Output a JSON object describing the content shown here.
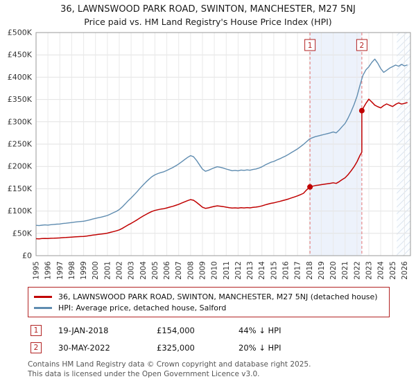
{
  "title": {
    "line1": "36, LAWNSWOOD PARK ROAD, SWINTON, MANCHESTER, M27 5NJ",
    "line2": "Price paid vs. HM Land Registry's House Price Index (HPI)"
  },
  "chart_data": {
    "type": "line",
    "title": "Price paid vs. HM Land Registry's House Price Index (HPI)",
    "xlabel": "",
    "ylabel": "",
    "x_range": [
      1995,
      2026.5
    ],
    "y_range": [
      0,
      500000
    ],
    "grid": true,
    "legend_position": "bottom",
    "y_ticks": [
      0,
      50000,
      100000,
      150000,
      200000,
      250000,
      300000,
      350000,
      400000,
      450000,
      500000
    ],
    "y_tick_labels": [
      "£0",
      "£50K",
      "£100K",
      "£150K",
      "£200K",
      "£250K",
      "£300K",
      "£350K",
      "£400K",
      "£450K",
      "£500K"
    ],
    "x_ticks": [
      1995,
      1996,
      1997,
      1998,
      1999,
      2000,
      2001,
      2002,
      2003,
      2004,
      2005,
      2006,
      2007,
      2008,
      2009,
      2010,
      2011,
      2012,
      2013,
      2014,
      2015,
      2016,
      2017,
      2018,
      2019,
      2020,
      2021,
      2022,
      2023,
      2024,
      2025,
      2026
    ],
    "shaded_band": {
      "from": 2018.05,
      "to": 2022.41,
      "color": "#edf2fb"
    },
    "hatched_region": {
      "from": 2025.35,
      "to": 2026.5
    },
    "sale_markers": [
      {
        "n": "1",
        "x": 2018.05,
        "y": 154000
      },
      {
        "n": "2",
        "x": 2022.41,
        "y": 325000
      }
    ],
    "series": [
      {
        "id": "property",
        "name": "36, LAWNSWOOD PARK ROAD, SWINTON, MANCHESTER, M27 5NJ (detached house)",
        "color": "#c00000",
        "width": 1.5,
        "points": [
          [
            1995.0,
            38100
          ],
          [
            1995.25,
            37700
          ],
          [
            1995.5,
            38300
          ],
          [
            1995.75,
            38600
          ],
          [
            1996.0,
            38400
          ],
          [
            1996.25,
            38900
          ],
          [
            1996.5,
            39200
          ],
          [
            1996.75,
            39500
          ],
          [
            1997.0,
            39800
          ],
          [
            1997.25,
            40300
          ],
          [
            1997.5,
            40700
          ],
          [
            1997.75,
            41200
          ],
          [
            1998.0,
            41600
          ],
          [
            1998.25,
            42100
          ],
          [
            1998.5,
            42600
          ],
          [
            1998.75,
            42900
          ],
          [
            1999.0,
            43200
          ],
          [
            1999.25,
            44000
          ],
          [
            1999.5,
            44900
          ],
          [
            1999.75,
            45900
          ],
          [
            2000.0,
            46800
          ],
          [
            2000.25,
            47700
          ],
          [
            2000.5,
            48500
          ],
          [
            2000.75,
            49400
          ],
          [
            2001.0,
            50500
          ],
          [
            2001.25,
            52100
          ],
          [
            2001.5,
            53900
          ],
          [
            2001.75,
            55600
          ],
          [
            2002.0,
            57800
          ],
          [
            2002.25,
            61100
          ],
          [
            2002.5,
            65000
          ],
          [
            2002.75,
            69000
          ],
          [
            2003.0,
            72400
          ],
          [
            2003.25,
            76300
          ],
          [
            2003.5,
            80300
          ],
          [
            2003.75,
            84600
          ],
          [
            2004.0,
            88600
          ],
          [
            2004.25,
            92400
          ],
          [
            2004.5,
            95900
          ],
          [
            2004.75,
            99100
          ],
          [
            2005.0,
            101400
          ],
          [
            2005.25,
            103000
          ],
          [
            2005.5,
            104300
          ],
          [
            2005.75,
            105300
          ],
          [
            2006.0,
            107000
          ],
          [
            2006.25,
            108800
          ],
          [
            2006.5,
            110500
          ],
          [
            2006.75,
            112700
          ],
          [
            2007.0,
            115000
          ],
          [
            2007.25,
            117800
          ],
          [
            2007.5,
            120600
          ],
          [
            2007.75,
            123300
          ],
          [
            2008.0,
            125600
          ],
          [
            2008.25,
            124200
          ],
          [
            2008.5,
            119600
          ],
          [
            2008.75,
            114100
          ],
          [
            2009.0,
            108600
          ],
          [
            2009.25,
            106000
          ],
          [
            2009.5,
            107100
          ],
          [
            2009.75,
            108800
          ],
          [
            2010.0,
            110400
          ],
          [
            2010.25,
            111600
          ],
          [
            2010.5,
            110900
          ],
          [
            2010.75,
            109900
          ],
          [
            2011.0,
            108700
          ],
          [
            2011.25,
            107600
          ],
          [
            2011.5,
            106600
          ],
          [
            2011.75,
            107100
          ],
          [
            2012.0,
            106500
          ],
          [
            2012.25,
            107500
          ],
          [
            2012.5,
            107000
          ],
          [
            2012.75,
            107700
          ],
          [
            2013.0,
            107200
          ],
          [
            2013.25,
            108200
          ],
          [
            2013.5,
            108800
          ],
          [
            2013.75,
            109900
          ],
          [
            2014.0,
            111500
          ],
          [
            2014.25,
            113700
          ],
          [
            2014.5,
            115500
          ],
          [
            2014.75,
            117200
          ],
          [
            2015.0,
            118300
          ],
          [
            2015.25,
            120000
          ],
          [
            2015.5,
            121600
          ],
          [
            2015.75,
            123400
          ],
          [
            2016.0,
            125100
          ],
          [
            2016.25,
            127200
          ],
          [
            2016.5,
            129500
          ],
          [
            2016.75,
            131700
          ],
          [
            2017.0,
            134000
          ],
          [
            2017.25,
            136800
          ],
          [
            2017.5,
            139700
          ],
          [
            2017.75,
            147000
          ],
          [
            2018.05,
            154000
          ],
          [
            2018.25,
            155600
          ],
          [
            2018.5,
            157100
          ],
          [
            2018.75,
            158100
          ],
          [
            2019.0,
            159100
          ],
          [
            2019.25,
            160100
          ],
          [
            2019.5,
            161000
          ],
          [
            2019.75,
            162100
          ],
          [
            2020.0,
            163300
          ],
          [
            2020.25,
            162000
          ],
          [
            2020.5,
            165700
          ],
          [
            2020.75,
            170300
          ],
          [
            2021.0,
            174500
          ],
          [
            2021.25,
            181500
          ],
          [
            2021.5,
            189900
          ],
          [
            2021.75,
            199200
          ],
          [
            2022.0,
            210400
          ],
          [
            2022.25,
            224600
          ],
          [
            2022.41,
            232000
          ],
          [
            2022.41,
            325000
          ],
          [
            2022.5,
            329500
          ],
          [
            2022.75,
            341200
          ],
          [
            2023.0,
            350800
          ],
          [
            2023.25,
            344300
          ],
          [
            2023.5,
            337200
          ],
          [
            2023.75,
            333800
          ],
          [
            2024.0,
            331200
          ],
          [
            2024.25,
            336400
          ],
          [
            2024.5,
            340100
          ],
          [
            2024.75,
            336900
          ],
          [
            2025.0,
            334300
          ],
          [
            2025.25,
            339200
          ],
          [
            2025.5,
            342400
          ],
          [
            2025.75,
            339800
          ],
          [
            2026.0,
            341300
          ],
          [
            2026.25,
            343100
          ]
        ]
      },
      {
        "id": "hpi",
        "name": "HPI: Average price, detached house, Salford",
        "color": "#5f8cb0",
        "width": 1.4,
        "points": [
          [
            1995.0,
            68000
          ],
          [
            1995.25,
            67400
          ],
          [
            1995.5,
            68300
          ],
          [
            1995.75,
            68900
          ],
          [
            1996.0,
            68500
          ],
          [
            1996.25,
            69400
          ],
          [
            1996.5,
            70000
          ],
          [
            1996.75,
            70600
          ],
          [
            1997.0,
            71000
          ],
          [
            1997.25,
            72000
          ],
          [
            1997.5,
            72600
          ],
          [
            1997.75,
            73500
          ],
          [
            1998.0,
            74200
          ],
          [
            1998.25,
            75100
          ],
          [
            1998.5,
            76000
          ],
          [
            1998.75,
            76600
          ],
          [
            1999.0,
            77200
          ],
          [
            1999.25,
            78500
          ],
          [
            1999.5,
            80100
          ],
          [
            1999.75,
            82000
          ],
          [
            2000.0,
            83600
          ],
          [
            2000.25,
            85100
          ],
          [
            2000.5,
            86500
          ],
          [
            2000.75,
            88200
          ],
          [
            2001.0,
            90100
          ],
          [
            2001.25,
            93000
          ],
          [
            2001.5,
            96200
          ],
          [
            2001.75,
            99300
          ],
          [
            2002.0,
            103200
          ],
          [
            2002.25,
            109100
          ],
          [
            2002.5,
            116000
          ],
          [
            2002.75,
            123100
          ],
          [
            2003.0,
            129300
          ],
          [
            2003.25,
            136200
          ],
          [
            2003.5,
            143400
          ],
          [
            2003.75,
            151100
          ],
          [
            2004.0,
            158200
          ],
          [
            2004.25,
            165000
          ],
          [
            2004.5,
            171200
          ],
          [
            2004.75,
            177000
          ],
          [
            2005.0,
            181100
          ],
          [
            2005.25,
            184000
          ],
          [
            2005.5,
            186200
          ],
          [
            2005.75,
            188100
          ],
          [
            2006.0,
            191000
          ],
          [
            2006.25,
            194200
          ],
          [
            2006.5,
            197300
          ],
          [
            2006.75,
            201200
          ],
          [
            2007.0,
            205400
          ],
          [
            2007.25,
            210300
          ],
          [
            2007.5,
            215400
          ],
          [
            2007.75,
            220200
          ],
          [
            2008.0,
            224300
          ],
          [
            2008.25,
            221800
          ],
          [
            2008.5,
            213600
          ],
          [
            2008.75,
            203800
          ],
          [
            2009.0,
            193900
          ],
          [
            2009.25,
            189200
          ],
          [
            2009.5,
            191300
          ],
          [
            2009.75,
            194200
          ],
          [
            2010.0,
            197100
          ],
          [
            2010.25,
            199300
          ],
          [
            2010.5,
            198100
          ],
          [
            2010.75,
            196200
          ],
          [
            2011.0,
            194100
          ],
          [
            2011.25,
            192200
          ],
          [
            2011.5,
            190300
          ],
          [
            2011.75,
            191200
          ],
          [
            2012.0,
            190100
          ],
          [
            2012.25,
            192000
          ],
          [
            2012.5,
            191100
          ],
          [
            2012.75,
            192300
          ],
          [
            2013.0,
            191400
          ],
          [
            2013.25,
            193200
          ],
          [
            2013.5,
            194300
          ],
          [
            2013.75,
            196200
          ],
          [
            2014.0,
            199100
          ],
          [
            2014.25,
            203000
          ],
          [
            2014.5,
            206200
          ],
          [
            2014.75,
            209300
          ],
          [
            2015.0,
            211200
          ],
          [
            2015.25,
            214300
          ],
          [
            2015.5,
            217100
          ],
          [
            2015.75,
            220300
          ],
          [
            2016.0,
            223400
          ],
          [
            2016.25,
            227200
          ],
          [
            2016.5,
            231300
          ],
          [
            2016.75,
            235200
          ],
          [
            2017.0,
            239300
          ],
          [
            2017.25,
            244200
          ],
          [
            2017.5,
            249400
          ],
          [
            2017.75,
            255300
          ],
          [
            2018.0,
            261200
          ],
          [
            2018.25,
            264300
          ],
          [
            2018.5,
            266800
          ],
          [
            2018.75,
            268400
          ],
          [
            2019.0,
            270100
          ],
          [
            2019.25,
            271800
          ],
          [
            2019.5,
            273400
          ],
          [
            2019.75,
            275200
          ],
          [
            2020.0,
            277300
          ],
          [
            2020.25,
            275100
          ],
          [
            2020.5,
            281400
          ],
          [
            2020.75,
            289200
          ],
          [
            2021.0,
            296300
          ],
          [
            2021.25,
            308200
          ],
          [
            2021.5,
            322400
          ],
          [
            2021.75,
            338300
          ],
          [
            2022.0,
            357200
          ],
          [
            2022.25,
            381300
          ],
          [
            2022.5,
            404100
          ],
          [
            2022.75,
            416300
          ],
          [
            2023.0,
            423400
          ],
          [
            2023.25,
            433200
          ],
          [
            2023.5,
            440600
          ],
          [
            2023.75,
            431200
          ],
          [
            2024.0,
            419300
          ],
          [
            2024.25,
            410800
          ],
          [
            2024.5,
            415600
          ],
          [
            2024.75,
            420400
          ],
          [
            2025.0,
            423800
          ],
          [
            2025.25,
            427200
          ],
          [
            2025.5,
            424600
          ],
          [
            2025.75,
            428800
          ],
          [
            2026.0,
            425300
          ],
          [
            2026.25,
            427600
          ]
        ]
      }
    ]
  },
  "legend": {
    "items": [
      {
        "label": "36, LAWNSWOOD PARK ROAD, SWINTON, MANCHESTER, M27 5NJ (detached house)",
        "color": "#c00000"
      },
      {
        "label": "HPI: Average price, detached house, Salford",
        "color": "#5f8cb0"
      }
    ]
  },
  "transactions": [
    {
      "marker": "1",
      "date": "19-JAN-2018",
      "price": "£154,000",
      "hpi": "44% ↓ HPI"
    },
    {
      "marker": "2",
      "date": "30-MAY-2022",
      "price": "£325,000",
      "hpi": "20% ↓ HPI"
    }
  ],
  "footer": {
    "line1": "Contains HM Land Registry data © Crown copyright and database right 2025.",
    "line2": "This data is licensed under the Open Government Licence v3.0."
  },
  "colors": {
    "accent_red": "#c00000",
    "hpi_blue": "#5f8cb0",
    "band_blue": "#edf2fb",
    "dashed_line": "#e57373",
    "grid": "#e2e2e2"
  }
}
